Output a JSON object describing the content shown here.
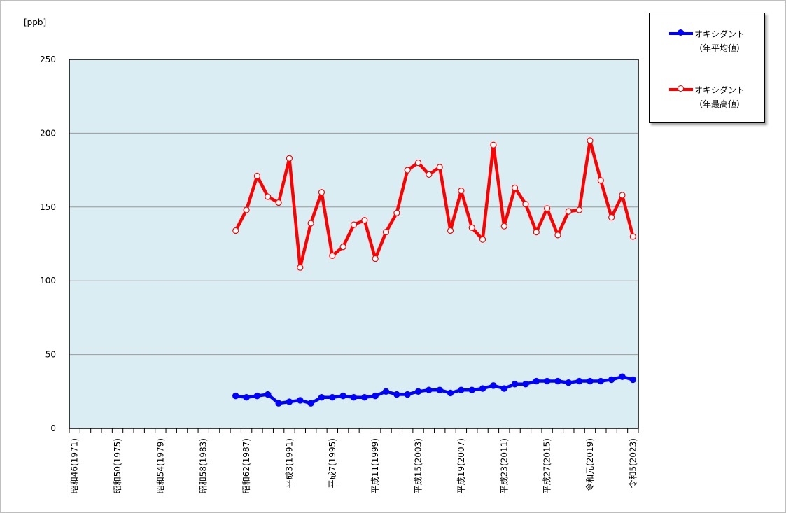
{
  "chart_data": {
    "type": "line",
    "unit_label": "[ppb]",
    "ylim": [
      0,
      250
    ],
    "yticks": [
      0,
      50,
      100,
      150,
      200,
      250
    ],
    "x_years": [
      1971,
      2023
    ],
    "xtick_labels": [
      {
        "year": 1971,
        "label": "昭和46(1971)"
      },
      {
        "year": 1975,
        "label": "昭和50(1975)"
      },
      {
        "year": 1979,
        "label": "昭和54(1979)"
      },
      {
        "year": 1983,
        "label": "昭和58(1983)"
      },
      {
        "year": 1987,
        "label": "昭和62(1987)"
      },
      {
        "year": 1991,
        "label": "平成3(1991)"
      },
      {
        "year": 1995,
        "label": "平成7(1995)"
      },
      {
        "year": 1999,
        "label": "平成11(1999)"
      },
      {
        "year": 2003,
        "label": "平成15(2003)"
      },
      {
        "year": 2007,
        "label": "平成19(2007)"
      },
      {
        "year": 2011,
        "label": "平成23(2011)"
      },
      {
        "year": 2015,
        "label": "平成27(2015)"
      },
      {
        "year": 2019,
        "label": "令和元(2019)"
      },
      {
        "year": 2023,
        "label": "令和5(2023)"
      }
    ],
    "grid": true,
    "legend_position": "top-right, outside plot",
    "series": [
      {
        "name": "オキシダント（年平均値）",
        "legend_line1": "オキシダント",
        "legend_line2": "（年平均値）",
        "color": "#0000ff",
        "marker": "filled",
        "x": [
          1986,
          1987,
          1988,
          1989,
          1990,
          1991,
          1992,
          1993,
          1994,
          1995,
          1996,
          1997,
          1998,
          1999,
          2000,
          2001,
          2002,
          2003,
          2004,
          2005,
          2006,
          2007,
          2008,
          2009,
          2010,
          2011,
          2012,
          2013,
          2014,
          2015,
          2016,
          2017,
          2018,
          2019,
          2020,
          2021,
          2022,
          2023
        ],
        "y": [
          22,
          21,
          22,
          23,
          17,
          18,
          19,
          17,
          21,
          21,
          22,
          21,
          21,
          22,
          25,
          23,
          23,
          25,
          26,
          26,
          24,
          26,
          26,
          27,
          29,
          27,
          30,
          30,
          32,
          32,
          32,
          31,
          32,
          32,
          32,
          33,
          35,
          33
        ]
      },
      {
        "name": "オキシダント（年最高値）",
        "legend_line1": "オキシダント",
        "legend_line2": "（年最高値）",
        "color": "#ff0000",
        "marker": "open",
        "x": [
          1986,
          1987,
          1988,
          1989,
          1990,
          1991,
          1992,
          1993,
          1994,
          1995,
          1996,
          1997,
          1998,
          1999,
          2000,
          2001,
          2002,
          2003,
          2004,
          2005,
          2006,
          2007,
          2008,
          2009,
          2010,
          2011,
          2012,
          2013,
          2014,
          2015,
          2016,
          2017,
          2018,
          2019,
          2020,
          2021,
          2022,
          2023
        ],
        "y": [
          134,
          148,
          171,
          157,
          153,
          183,
          109,
          139,
          160,
          117,
          123,
          138,
          141,
          115,
          133,
          146,
          175,
          180,
          172,
          177,
          134,
          161,
          136,
          128,
          192,
          137,
          163,
          152,
          133,
          149,
          131,
          147,
          148,
          195,
          168,
          143,
          158,
          130
        ]
      }
    ]
  }
}
